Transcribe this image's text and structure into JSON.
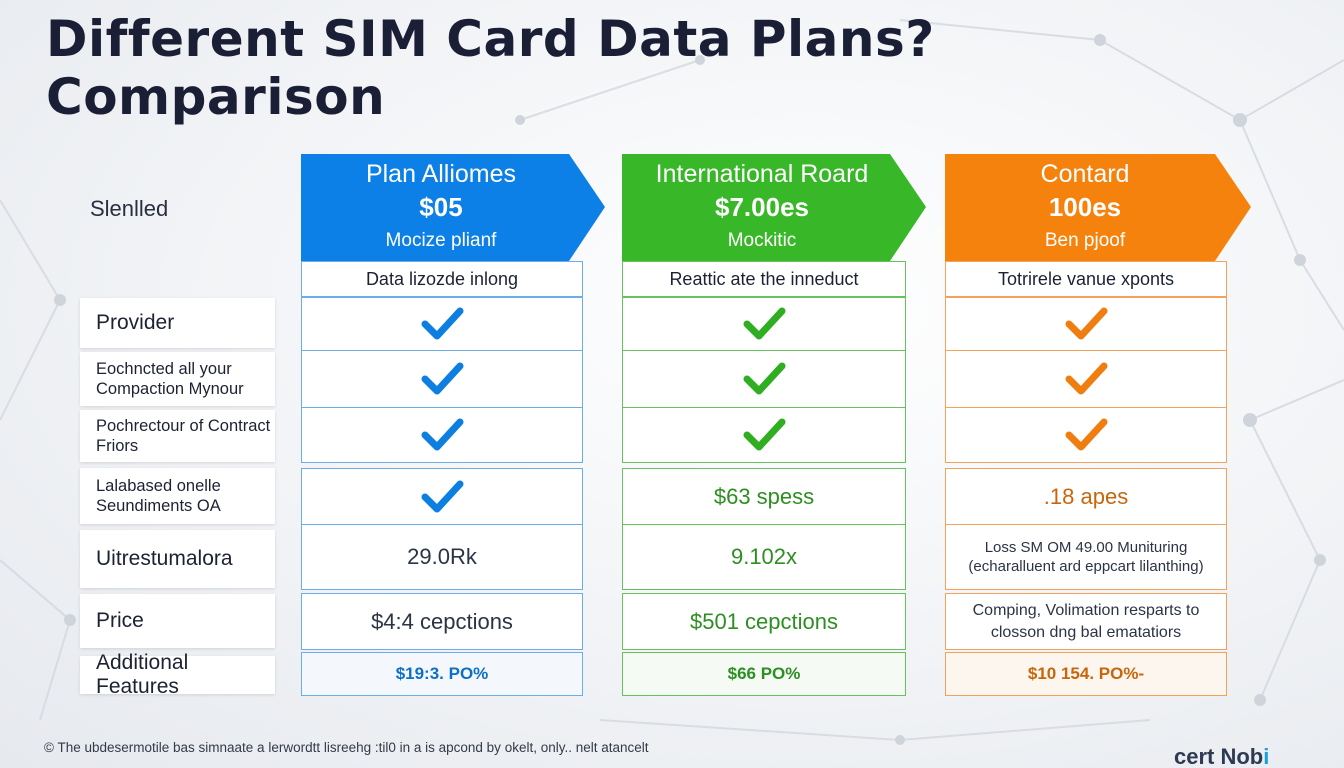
{
  "title": "Different SIM Card Data Plans? Comparison",
  "side_label": "Slenlled",
  "plans": [
    {
      "name": "Plan Alliomes",
      "price": "$05",
      "sub": "Mocize plianf",
      "subheader": "Data lizozde inlong",
      "color": "#0c80e6"
    },
    {
      "name": "International Roard",
      "price": "$7.00es",
      "sub": "Mockitic",
      "subheader": "Reattic ate the inneduct",
      "color": "#38b828"
    },
    {
      "name": "Contard",
      "price": "100es",
      "sub": "Ben pjoof",
      "subheader": "Totrirele vanue xponts",
      "color": "#f6820e"
    }
  ],
  "rows": [
    {
      "label": "Provider"
    },
    {
      "label": "Eochncted all your Compaction Mynour"
    },
    {
      "label": "Pochrectour of Contract Friors"
    },
    {
      "label": "Lalabased onelle Seundiments OA"
    },
    {
      "label": "Uitrestumalora"
    },
    {
      "label": "Price"
    },
    {
      "label": "Additional Features"
    }
  ],
  "values": {
    "r3_green": "$63 spess",
    "r3_orange": ".18 apes",
    "r4_blue": "29.0Rk",
    "r4_green": "9.102x",
    "r4_orange": "Loss SM OM 49.00 Munituring (echaralluent ard eppcart lilanthing)",
    "r5_blue": "$4:4 cepctions",
    "r5_green": "$501 cepctions",
    "r5_orange": "Comping, Volimation resparts to closson dng bal ematatiors",
    "r6_blue": "$19:3. PO%",
    "r6_green": "$66 PO%",
    "r6_orange": "$10 154. PO%-"
  },
  "footer_note": "© The ubdesermotile bas simnaate a lerwordtt lisreehg :til0 in a is apcond by okelt, only.. nelt atancelt",
  "logo": {
    "text_main": "cert Nob",
    "text_accent": "i"
  },
  "colors": {
    "blue": "#0c80e6",
    "green": "#38b828",
    "orange": "#f6820e",
    "title": "#1b1f36"
  }
}
